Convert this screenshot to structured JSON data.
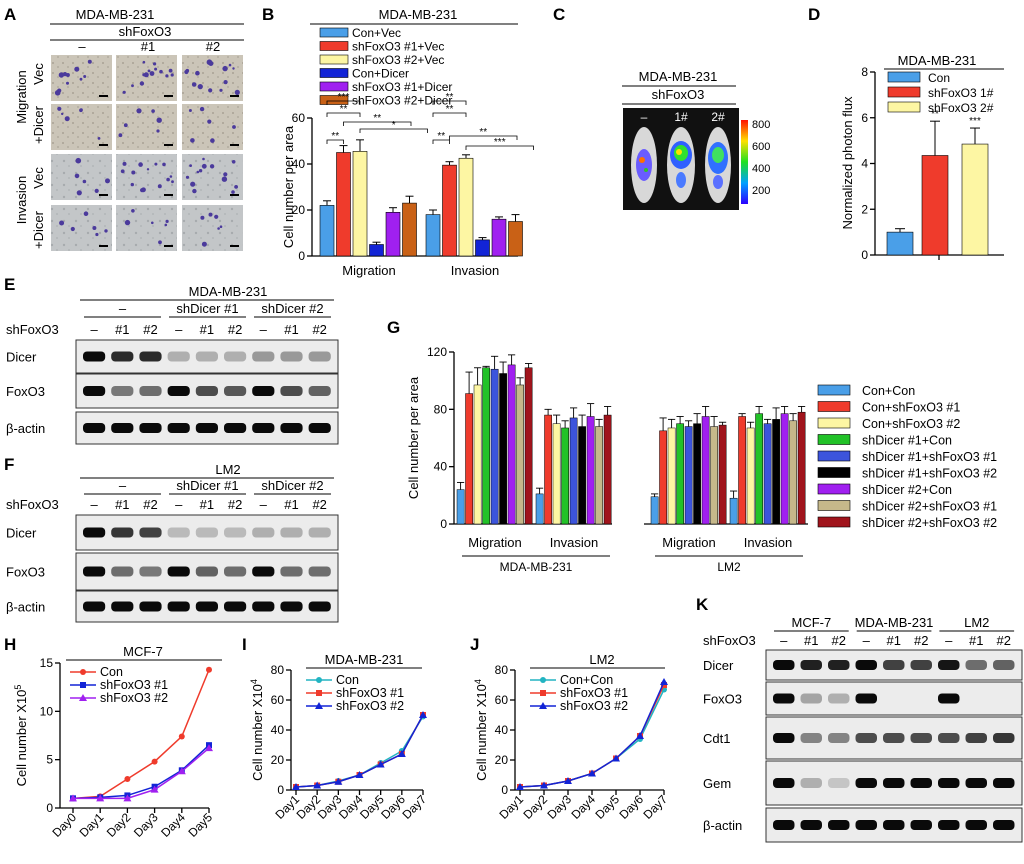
{
  "colors": {
    "con": "#4a9fe8",
    "sh1": "#ef3b2c",
    "sh2": "#fdf6a3",
    "conDicer": "#1224d6",
    "sh1Dicer": "#a020f0",
    "sh2Dicer": "#c96116",
    "G": [
      "#4a9fe8",
      "#ef3b2c",
      "#fdf6a3",
      "#22c228",
      "#3c54dc",
      "#000000",
      "#a020f0",
      "#c6b88a",
      "#a0141c"
    ],
    "cyan": "#22b4c2",
    "red": "#ef3b2c",
    "blue": "#1224d6",
    "purple": "#a020f0"
  },
  "panels": {
    "A": {
      "letter": "A",
      "title": "MDA-MB-231",
      "sub": "shFoxO3",
      "cols": [
        "–",
        "#1",
        "#2"
      ],
      "groups": [
        "Migration",
        "Invasion"
      ],
      "rows": [
        "Vec",
        "+Dicer",
        "Vec",
        "+Dicer"
      ]
    },
    "B": {
      "letter": "B",
      "title": "MDA-MB-231"
    },
    "C": {
      "letter": "C",
      "title": "MDA-MB-231",
      "sub": "shFoxO3",
      "cols": [
        "–",
        "1#",
        "2#"
      ],
      "scale": [
        "800",
        "600",
        "400",
        "200"
      ]
    },
    "D": {
      "letter": "D",
      "title": "MDA-MB-231"
    },
    "E": {
      "letter": "E",
      "title": "MDA-MB-231",
      "groups": [
        "–",
        "shDicer #1",
        "shDicer #2"
      ],
      "rowlabel": "shFoxO3",
      "lanes": [
        "–",
        "#1",
        "#2",
        "–",
        "#1",
        "#2",
        "–",
        "#1",
        "#2"
      ],
      "bands": [
        "Dicer",
        "FoxO3",
        "β-actin"
      ]
    },
    "F": {
      "letter": "F",
      "title": "LM2",
      "groups": [
        "–",
        "shDicer #1",
        "shDicer #2"
      ],
      "rowlabel": "shFoxO3",
      "lanes": [
        "–",
        "#1",
        "#2",
        "–",
        "#1",
        "#2",
        "–",
        "#1",
        "#2"
      ],
      "bands": [
        "Dicer",
        "FoxO3",
        "β-actin"
      ]
    },
    "G": {
      "letter": "G",
      "groups": [
        "MDA-MB-231",
        "LM2"
      ]
    },
    "H": {
      "letter": "H",
      "title": "MCF-7"
    },
    "I": {
      "letter": "I",
      "title": "MDA-MB-231"
    },
    "J": {
      "letter": "J",
      "title": "LM2"
    },
    "K": {
      "letter": "K",
      "groups": [
        "MCF-7",
        "MDA-MB-231",
        "LM2"
      ],
      "rowlabel": "shFoxO3",
      "lanes": [
        "–",
        "#1",
        "#2",
        "–",
        "#1",
        "#2",
        "–",
        "#1",
        "#2"
      ],
      "bands": [
        "Dicer",
        "FoxO3",
        "Cdt1",
        "Gem",
        "β-actin"
      ]
    }
  },
  "chart_data": [
    {
      "id": "B",
      "type": "bar",
      "title": "MDA-MB-231",
      "ylabel": "Cell number per area",
      "ylim": [
        0,
        60
      ],
      "yticks": [
        0,
        20,
        40,
        60
      ],
      "categories": [
        "Migration",
        "Invasion"
      ],
      "legend": "top",
      "series": [
        {
          "name": "Con+Vec",
          "values": [
            22,
            18
          ],
          "err": [
            2,
            2
          ]
        },
        {
          "name": "shFoxO3 #1+Vec",
          "values": [
            45,
            39.5
          ],
          "err": [
            3,
            1.5
          ]
        },
        {
          "name": "shFoxO3 #2+Vec",
          "values": [
            45.5,
            42.5
          ],
          "err": [
            5,
            1.5
          ]
        },
        {
          "name": "Con+Dicer",
          "values": [
            5,
            7
          ],
          "err": [
            1,
            1
          ]
        },
        {
          "name": "shFoxO3 #1+Dicer",
          "values": [
            19,
            16
          ],
          "err": [
            2,
            1
          ]
        },
        {
          "name": "shFoxO3 #2+Dicer",
          "values": [
            23,
            15
          ],
          "err": [
            3,
            3
          ]
        }
      ],
      "significance": [
        {
          "group": "Migration",
          "labels": [
            "**",
            "**",
            "***",
            "**",
            "*"
          ]
        },
        {
          "group": "Invasion",
          "labels": [
            "**",
            "**",
            "**",
            "**",
            "***"
          ]
        }
      ]
    },
    {
      "id": "D",
      "type": "bar",
      "title": "MDA-MB-231",
      "ylabel": "Normalized photon flux",
      "ylim": [
        0,
        8
      ],
      "yticks": [
        0,
        2,
        4,
        6,
        8
      ],
      "legend": "top",
      "series": [
        {
          "name": "Con",
          "values": [
            1.0
          ],
          "err": [
            0.15
          ],
          "sig": ""
        },
        {
          "name": "shFoxO3 1#",
          "values": [
            4.35
          ],
          "err": [
            1.5
          ],
          "sig": "**"
        },
        {
          "name": "shFoxO3 2#",
          "values": [
            4.85
          ],
          "err": [
            0.7
          ],
          "sig": "***"
        }
      ]
    },
    {
      "id": "G",
      "type": "bar",
      "ylabel": "Cell number per area",
      "ylim": [
        0,
        120
      ],
      "yticks": [
        0,
        40,
        80,
        120
      ],
      "categories": [
        "Migration",
        "Invasion",
        "Migration",
        "Invasion"
      ],
      "legend": "right",
      "series": [
        {
          "name": "Con+Con",
          "values": [
            24,
            21,
            19,
            18
          ]
        },
        {
          "name": "Con+shFoxO3 #1",
          "values": [
            91,
            76,
            65,
            75
          ]
        },
        {
          "name": "Con+shFoxO3 #2",
          "values": [
            97,
            70,
            67,
            67
          ]
        },
        {
          "name": "shDicer #1+Con",
          "values": [
            109,
            67,
            70,
            77
          ]
        },
        {
          "name": "shDicer #1+shFoxO3 #1",
          "values": [
            108,
            74,
            68,
            70
          ]
        },
        {
          "name": "shDicer #1+shFoxO3 #2",
          "values": [
            105,
            68,
            70,
            73
          ]
        },
        {
          "name": "shDicer #2+Con",
          "values": [
            111,
            75,
            75,
            77
          ]
        },
        {
          "name": "shDicer #2+shFoxO3 #1",
          "values": [
            97,
            68,
            68,
            72
          ]
        },
        {
          "name": "shDicer #2+shFoxO3 #2",
          "values": [
            109,
            76,
            69,
            78
          ]
        }
      ],
      "err": [
        [
          5,
          4,
          2,
          5
        ],
        [
          15,
          4,
          9,
          2
        ],
        [
          12,
          6,
          6,
          4
        ],
        [
          1,
          5,
          5,
          5
        ],
        [
          9,
          7,
          4,
          3
        ],
        [
          8,
          8,
          7,
          8
        ],
        [
          7,
          9,
          7,
          5
        ],
        [
          5,
          5,
          7,
          5
        ],
        [
          3,
          6,
          2,
          4
        ]
      ]
    },
    {
      "id": "H",
      "type": "line",
      "title": "MCF-7",
      "ylabel": "Cell number X10",
      "ylabel_exp": "5",
      "ylim": [
        0,
        15
      ],
      "yticks": [
        0,
        5,
        10,
        15
      ],
      "legend": "top-left",
      "x": [
        "Day0",
        "Day1",
        "Day2",
        "Day3",
        "Day4",
        "Day5"
      ],
      "series": [
        {
          "name": "Con",
          "values": [
            1.0,
            1.2,
            3.0,
            4.8,
            7.4,
            14.3
          ],
          "marker": "circle"
        },
        {
          "name": "shFoxO3 #1",
          "values": [
            1.0,
            1.1,
            1.3,
            2.2,
            3.9,
            6.5
          ],
          "marker": "square"
        },
        {
          "name": "shFoxO3 #2",
          "values": [
            1.0,
            1.0,
            1.0,
            1.9,
            3.8,
            6.2
          ],
          "marker": "triangle"
        }
      ]
    },
    {
      "id": "I",
      "type": "line",
      "title": "MDA-MB-231",
      "ylabel": "Cell number X10",
      "ylabel_exp": "4",
      "ylim": [
        0,
        80
      ],
      "yticks": [
        0,
        20,
        40,
        60,
        80
      ],
      "legend": "top-left",
      "x": [
        "Day1",
        "Day2",
        "Day3",
        "Day4",
        "Day5",
        "Day6",
        "Day7"
      ],
      "series": [
        {
          "name": "Con",
          "values": [
            2,
            3,
            6,
            10,
            18,
            26,
            49
          ],
          "marker": "circle"
        },
        {
          "name": "shFoxO3 #1",
          "values": [
            2,
            3,
            5.5,
            10,
            17,
            24,
            50
          ],
          "marker": "square"
        },
        {
          "name": "shFoxO3 #2",
          "values": [
            2,
            3,
            5.5,
            10,
            17,
            24,
            50
          ],
          "marker": "triangle"
        }
      ]
    },
    {
      "id": "J",
      "type": "line",
      "title": "LM2",
      "ylabel": "Cell number X10",
      "ylabel_exp": "4",
      "ylim": [
        0,
        80
      ],
      "yticks": [
        0,
        20,
        40,
        60,
        80
      ],
      "legend": "top-left",
      "x": [
        "Day1",
        "Day2",
        "Day3",
        "Day4",
        "Day5",
        "Day6",
        "Day7"
      ],
      "series": [
        {
          "name": "Con+Con",
          "values": [
            2,
            3,
            6,
            11,
            21,
            34,
            67
          ],
          "marker": "circle"
        },
        {
          "name": "shFoxO3 #1",
          "values": [
            2,
            3,
            6,
            11,
            21,
            36,
            70
          ],
          "marker": "square"
        },
        {
          "name": "shFoxO3 #2",
          "values": [
            2,
            3,
            6,
            11,
            21,
            36,
            72
          ],
          "marker": "triangle"
        }
      ]
    }
  ]
}
